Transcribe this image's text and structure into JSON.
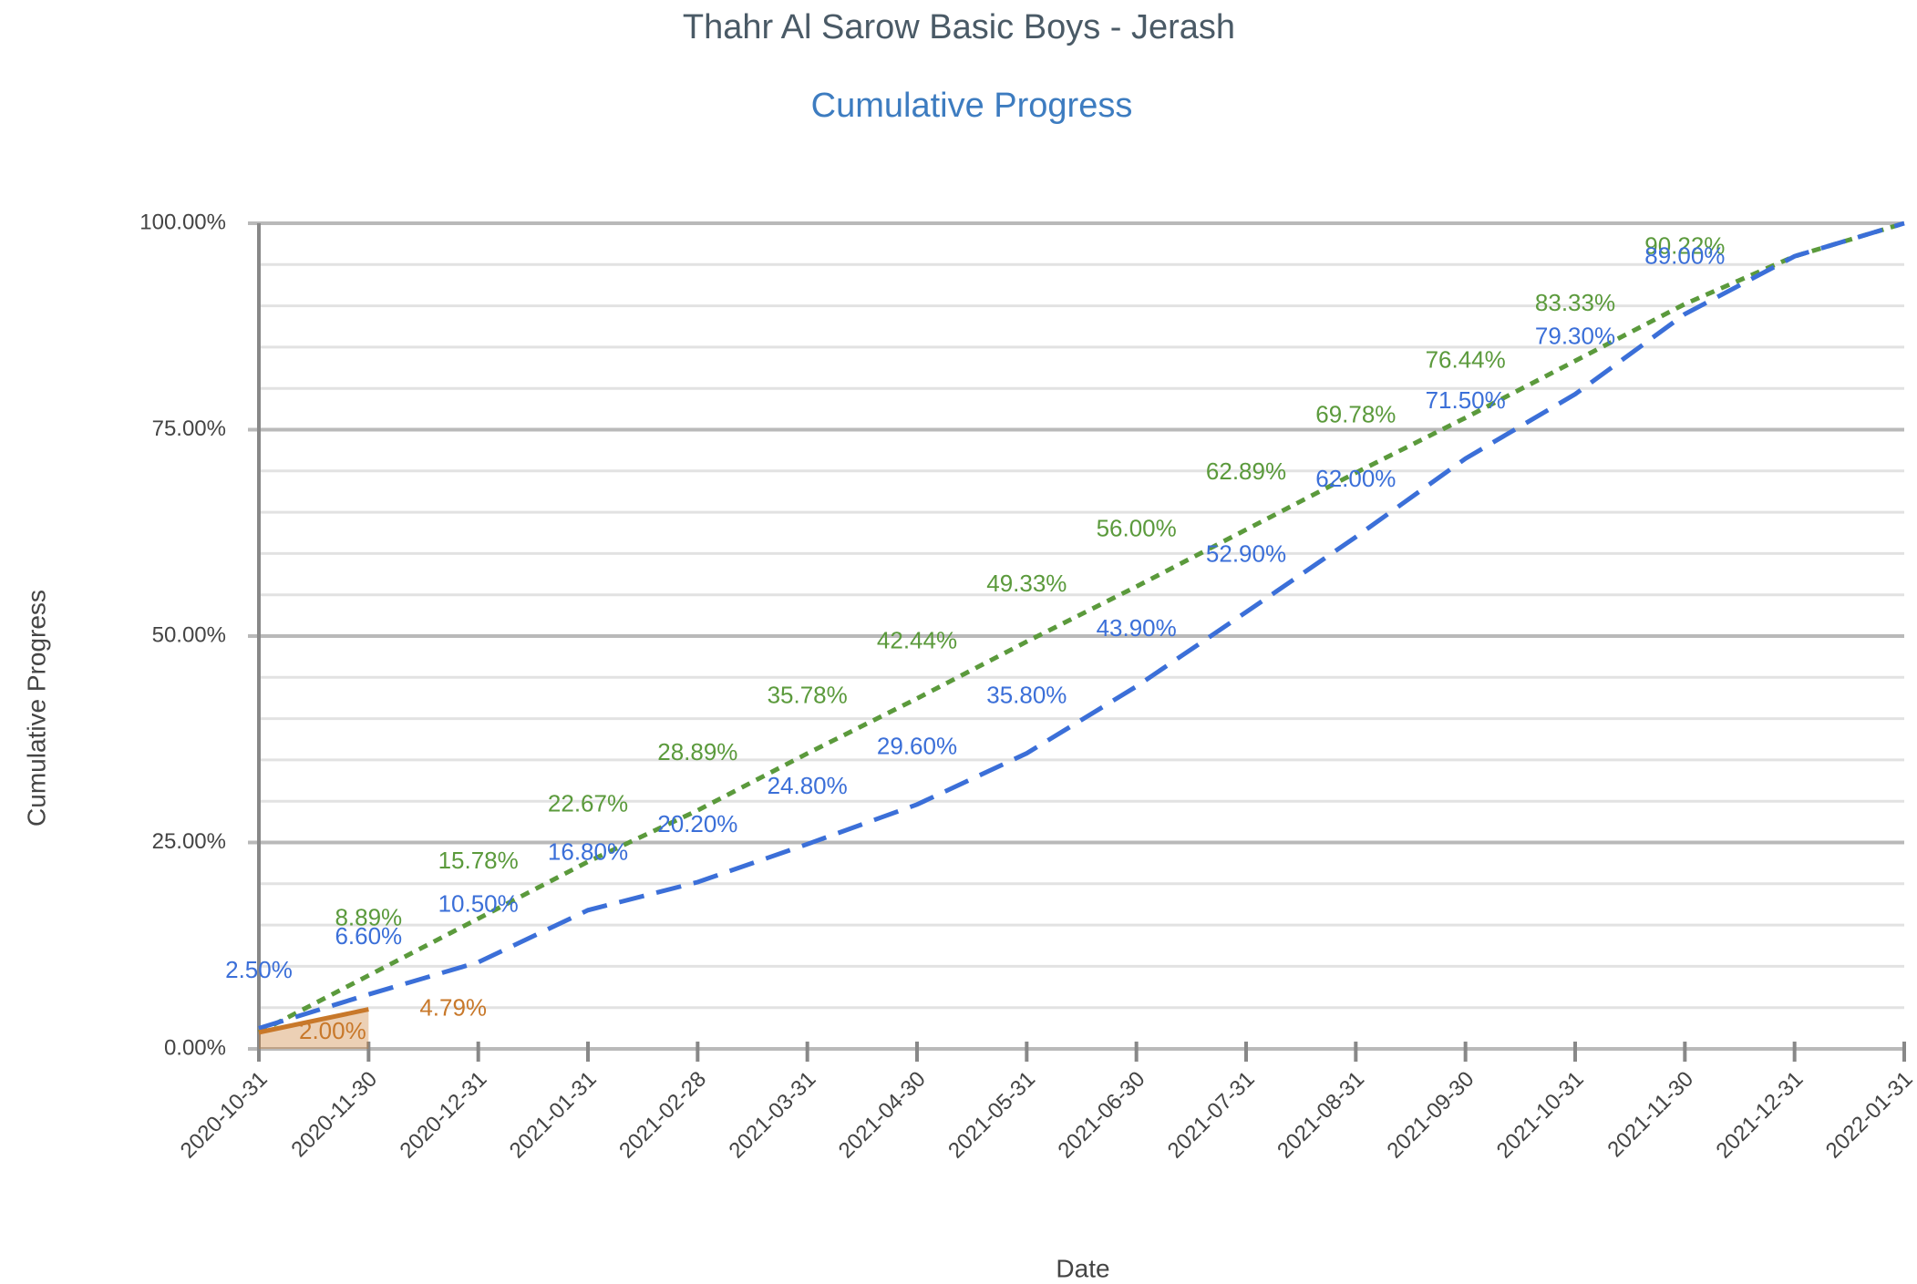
{
  "chart_data": {
    "type": "line",
    "title": "Thahr Al Sarow Basic Boys - Jerash",
    "subtitle": "Cumulative Progress",
    "x_label": "Date",
    "y_label": "Cumulative Progress",
    "categories": [
      "2020-10-31",
      "2020-11-30",
      "2020-12-31",
      "2021-01-31",
      "2021-02-28",
      "2021-03-31",
      "2021-04-30",
      "2021-05-31",
      "2021-06-30",
      "2021-07-31",
      "2021-08-31",
      "2021-09-30",
      "2021-10-31",
      "2021-11-30",
      "2021-12-31",
      "2022-01-31"
    ],
    "series": [
      {
        "color": "#5b9a3c",
        "dash": "10,8",
        "values": [
          2.0,
          8.89,
          15.78,
          22.67,
          28.89,
          35.78,
          42.44,
          49.33,
          56.0,
          62.89,
          69.78,
          76.44,
          83.33,
          90.22,
          96.0,
          100
        ],
        "value_labels": [
          null,
          "8.89%",
          "15.78%",
          "22.67%",
          "28.89%",
          "35.78%",
          "42.44%",
          "49.33%",
          "56.00%",
          "62.89%",
          "69.78%",
          "76.44%",
          "83.33%",
          "90.22%",
          null,
          null
        ]
      },
      {
        "color": "#3b6fd8",
        "dash": "28,14",
        "values": [
          2.5,
          6.6,
          10.5,
          16.8,
          20.2,
          24.8,
          29.6,
          35.8,
          43.9,
          52.9,
          62.0,
          71.5,
          79.3,
          89.0,
          96.0,
          100
        ],
        "value_labels": [
          "2.50%",
          "6.60%",
          "10.50%",
          "16.80%",
          "20.20%",
          "24.80%",
          "29.60%",
          "35.80%",
          "43.90%",
          "52.90%",
          "62.00%",
          "71.50%",
          "79.30%",
          "89.00%",
          null,
          null
        ]
      },
      {
        "color": "#c8782a",
        "fill": true,
        "values": [
          2.0,
          4.79,
          null,
          null,
          null,
          null,
          null,
          null,
          null,
          null,
          null,
          null,
          null,
          null,
          null,
          null
        ],
        "value_labels": [
          "2.00%",
          "4.79%",
          null,
          null,
          null,
          null,
          null,
          null,
          null,
          null,
          null,
          null,
          null,
          null,
          null,
          null
        ]
      }
    ],
    "ylim": [
      0,
      100
    ],
    "yticks": [
      {
        "value": 0,
        "label": "0.00%"
      },
      {
        "value": 25,
        "label": "25.00%"
      },
      {
        "value": 50,
        "label": "50.00%"
      },
      {
        "value": 75,
        "label": "75.00%"
      },
      {
        "value": 100,
        "label": "100.00%"
      }
    ],
    "minor_yticks": [
      5,
      10,
      15,
      20,
      30,
      35,
      40,
      45,
      55,
      60,
      65,
      70,
      80,
      85,
      90,
      95
    ],
    "grid": true
  }
}
